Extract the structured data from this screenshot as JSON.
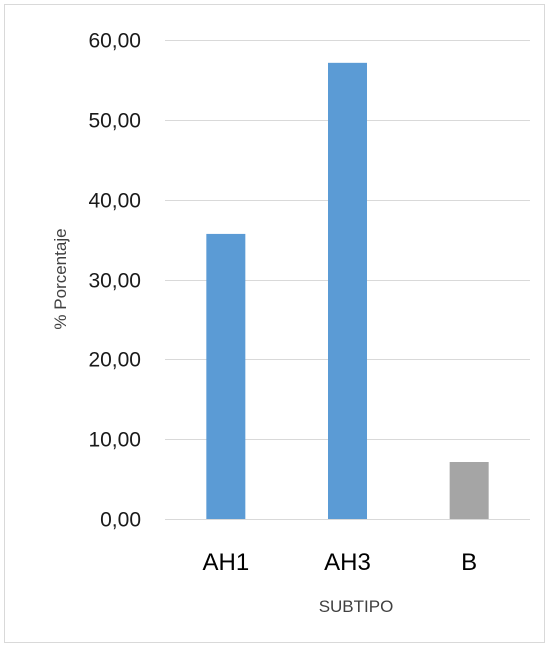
{
  "chart_data": {
    "type": "bar",
    "categories": [
      "AH1",
      "AH3",
      "B"
    ],
    "values": [
      35.71,
      57.14,
      7.14
    ],
    "bar_colors": [
      "#5b9bd5",
      "#5b9bd5",
      "#a5a5a5"
    ],
    "xlabel": "SUBTIPO",
    "ylabel": "% Porcentaje",
    "ylim": [
      0,
      60
    ],
    "yticks": [
      0,
      10,
      20,
      30,
      40,
      50,
      60
    ],
    "ytick_labels": [
      "0,00",
      "10,00",
      "20,00",
      "30,00",
      "40,00",
      "50,00",
      "60,00"
    ],
    "grid": true,
    "legend": "none"
  }
}
